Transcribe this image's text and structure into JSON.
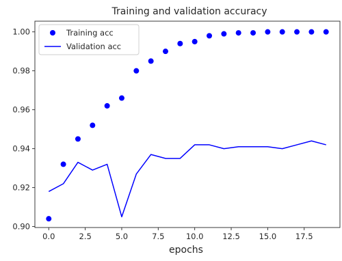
{
  "chart_data": {
    "type": "line",
    "title": "Training and validation accuracy",
    "xlabel": "epochs",
    "ylabel": "",
    "xlim": [
      -0.95,
      19.95
    ],
    "ylim": [
      0.8995,
      1.0055
    ],
    "xticks": [
      0.0,
      2.5,
      5.0,
      7.5,
      10.0,
      12.5,
      15.0,
      17.5
    ],
    "xtick_labels": [
      "0.0",
      "2.5",
      "5.0",
      "7.5",
      "10.0",
      "12.5",
      "15.0",
      "17.5"
    ],
    "yticks": [
      0.9,
      0.92,
      0.94,
      0.96,
      0.98,
      1.0
    ],
    "ytick_labels": [
      "0.90",
      "0.92",
      "0.94",
      "0.96",
      "0.98",
      "1.00"
    ],
    "grid": false,
    "legend_position": "upper-left",
    "x": [
      0,
      1,
      2,
      3,
      4,
      5,
      6,
      7,
      8,
      9,
      10,
      11,
      12,
      13,
      14,
      15,
      16,
      17,
      18,
      19
    ],
    "series": [
      {
        "name": "Training acc",
        "style": "markers",
        "color": "#0000ff",
        "values": [
          0.904,
          0.932,
          0.945,
          0.952,
          0.962,
          0.966,
          0.98,
          0.985,
          0.99,
          0.994,
          0.995,
          0.998,
          0.999,
          0.9995,
          0.9995,
          1.0,
          1.0,
          1.0,
          1.0,
          1.0
        ]
      },
      {
        "name": "Validation acc",
        "style": "line",
        "color": "#0000ff",
        "values": [
          0.918,
          0.922,
          0.933,
          0.929,
          0.932,
          0.905,
          0.927,
          0.937,
          0.935,
          0.935,
          0.942,
          0.942,
          0.94,
          0.941,
          0.941,
          0.941,
          0.94,
          0.942,
          0.944,
          0.942
        ]
      }
    ]
  }
}
